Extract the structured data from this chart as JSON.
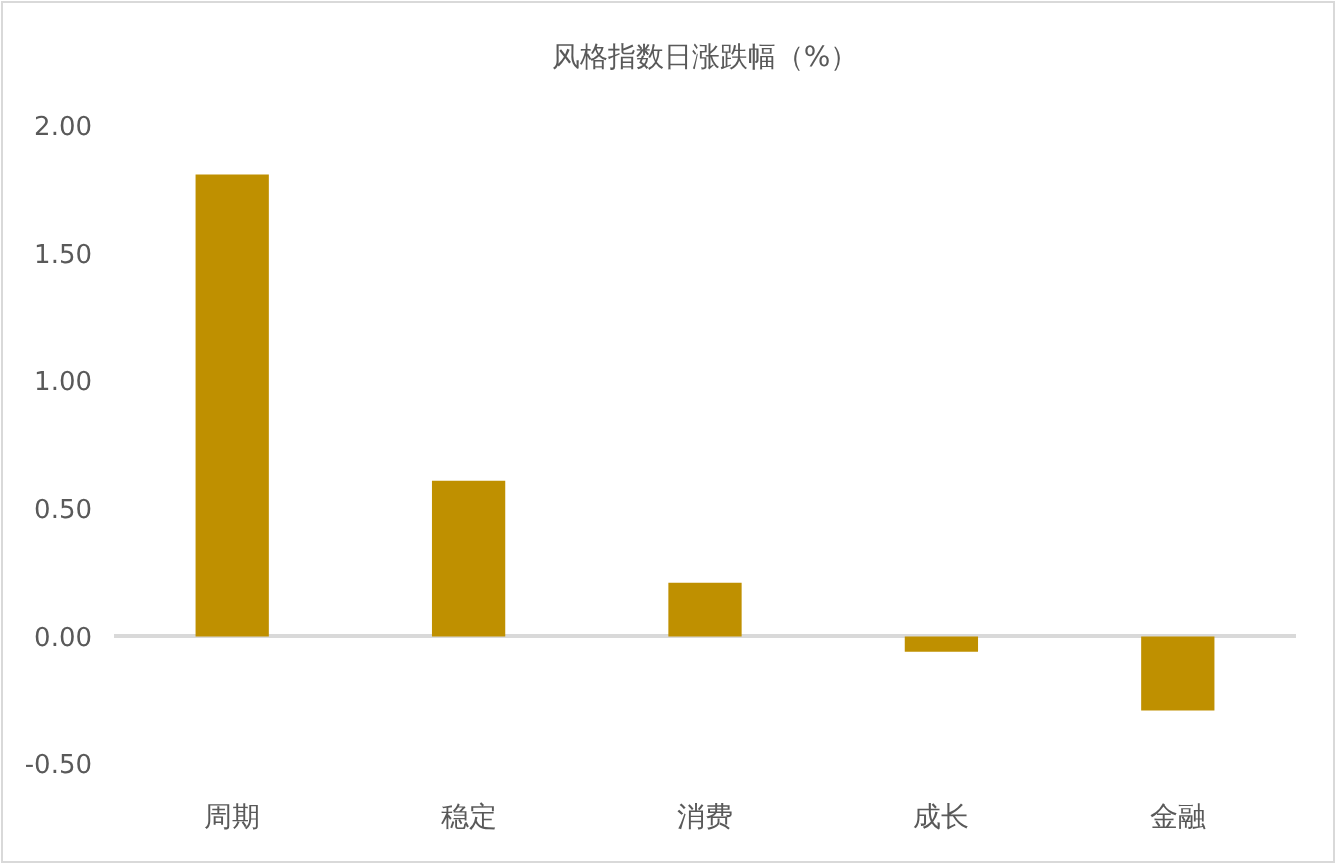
{
  "chart_data": {
    "type": "bar",
    "title": "风格指数日涨跌幅（%）",
    "categories": [
      "周期",
      "稳定",
      "消费",
      "成长",
      "金融"
    ],
    "values": [
      1.81,
      0.61,
      0.21,
      -0.06,
      -0.29
    ],
    "color": "#bf9000",
    "ylim": [
      -0.5,
      2.0
    ],
    "yticks": [
      {
        "value": -0.5,
        "label": "-0.50"
      },
      {
        "value": 0,
        "label": "0.00"
      },
      {
        "value": 0.5,
        "label": "0.50"
      },
      {
        "value": 1.0,
        "label": "1.00"
      },
      {
        "value": 1.5,
        "label": "1.50"
      },
      {
        "value": 2.0,
        "label": "2.00"
      }
    ]
  }
}
